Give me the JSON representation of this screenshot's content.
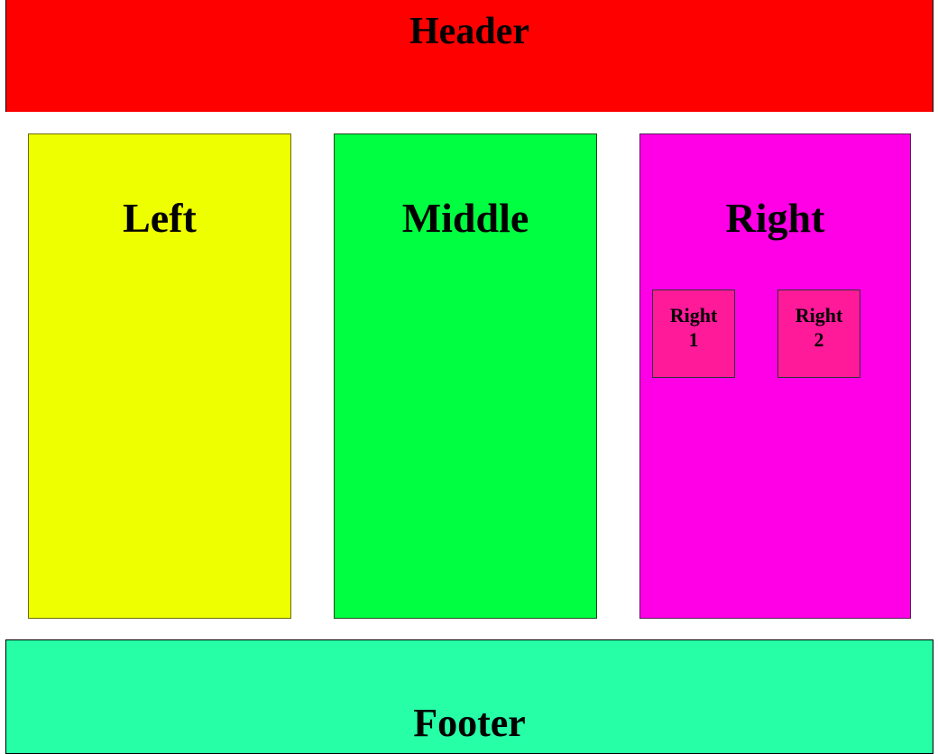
{
  "header": {
    "title": "Header"
  },
  "columns": {
    "left": {
      "title": "Left"
    },
    "middle": {
      "title": "Middle"
    },
    "right": {
      "title": "Right",
      "sub_items": [
        {
          "line1": "Right",
          "line2": "1"
        },
        {
          "line1": "Right",
          "line2": "2"
        }
      ]
    }
  },
  "footer": {
    "title": "Footer"
  },
  "colors": {
    "header": "#ff0000",
    "left": "#eeff00",
    "middle": "#00ff40",
    "right": "#ff00e6",
    "right_sub": "#ff1a9a",
    "footer": "#26ffa6"
  }
}
